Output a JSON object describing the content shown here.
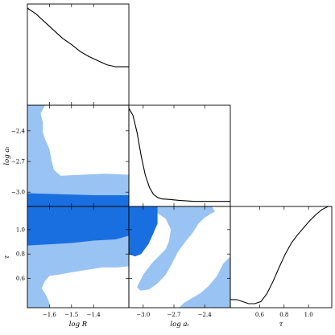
{
  "colors": {
    "inner": "#1a6fe0",
    "outer": "#99c3f2",
    "line": "#000000"
  },
  "chart_data": {
    "type": "corner",
    "grid": false,
    "parameters": [
      {
        "key": "logR",
        "label": "log R",
        "range": [
          -1.7,
          -1.24
        ],
        "ticks": [
          -1.6,
          -1.5,
          -1.4
        ],
        "tick_labels": [
          "−1.6",
          "−1.5",
          "−1.4"
        ]
      },
      {
        "key": "logat",
        "label": "log aₜ",
        "range": [
          -3.14,
          -2.15
        ],
        "ticks": [
          -3.0,
          -2.7,
          -2.4
        ],
        "tick_labels": [
          "−3.0",
          "−2.7",
          "−2.4"
        ]
      },
      {
        "key": "tau",
        "label": "τ",
        "range": [
          0.36,
          1.19
        ],
        "ticks": [
          0.6,
          0.8,
          1.0
        ],
        "tick_labels": [
          "0.6",
          "0.8",
          "1.0"
        ]
      }
    ],
    "marginals": [
      {
        "param": "logR",
        "x": [
          -1.7,
          -1.66,
          -1.62,
          -1.58,
          -1.54,
          -1.5,
          -1.46,
          -1.42,
          -1.38,
          -1.34,
          -1.3,
          -1.26,
          -1.24
        ],
        "y": [
          0.96,
          0.9,
          0.82,
          0.74,
          0.66,
          0.6,
          0.53,
          0.48,
          0.44,
          0.4,
          0.38,
          0.38,
          0.38
        ]
      },
      {
        "param": "logat",
        "x": [
          -3.14,
          -3.1,
          -3.06,
          -3.02,
          -2.98,
          -2.94,
          -2.9,
          -2.86,
          -2.82,
          -2.75,
          -2.65,
          -2.5,
          -2.35,
          -2.2,
          -2.15
        ],
        "y": [
          0.97,
          0.9,
          0.73,
          0.5,
          0.31,
          0.19,
          0.12,
          0.09,
          0.075,
          0.07,
          0.06,
          0.05,
          0.05,
          0.05,
          0.05
        ]
      },
      {
        "param": "tau",
        "x": [
          0.36,
          0.41,
          0.46,
          0.51,
          0.56,
          0.61,
          0.66,
          0.71,
          0.76,
          0.81,
          0.86,
          0.91,
          0.96,
          1.01,
          1.06,
          1.11,
          1.16,
          1.19
        ],
        "y": [
          0.08,
          0.08,
          0.06,
          0.04,
          0.04,
          0.06,
          0.14,
          0.26,
          0.4,
          0.53,
          0.64,
          0.72,
          0.79,
          0.86,
          0.92,
          0.97,
          1.0,
          1.0
        ]
      }
    ],
    "contours": [
      {
        "x": "logR",
        "y": "logat",
        "levels": [
          {
            "level": "outer",
            "polygon": [
              [
                -1.7,
                -3.14
              ],
              [
                -1.24,
                -3.14
              ],
              [
                -1.24,
                -2.83
              ],
              [
                -1.35,
                -2.82
              ],
              [
                -1.45,
                -2.83
              ],
              [
                -1.55,
                -2.84
              ],
              [
                -1.58,
                -2.78
              ],
              [
                -1.59,
                -2.69
              ],
              [
                -1.6,
                -2.58
              ],
              [
                -1.62,
                -2.48
              ],
              [
                -1.63,
                -2.41
              ],
              [
                -1.63,
                -2.32
              ],
              [
                -1.64,
                -2.23
              ],
              [
                -1.62,
                -2.15
              ],
              [
                -1.7,
                -2.15
              ]
            ]
          },
          {
            "level": "inner",
            "polygon": [
              [
                -1.7,
                -3.14
              ],
              [
                -1.24,
                -3.14
              ],
              [
                -1.24,
                -3.03
              ],
              [
                -1.4,
                -3.03
              ],
              [
                -1.55,
                -3.02
              ],
              [
                -1.7,
                -3.01
              ]
            ]
          }
        ]
      },
      {
        "x": "logR",
        "y": "tau",
        "levels": [
          {
            "level": "outer",
            "polygon": [
              [
                -1.7,
                1.19
              ],
              [
                -1.24,
                1.19
              ],
              [
                -1.24,
                0.7
              ],
              [
                -1.29,
                0.69
              ],
              [
                -1.36,
                0.69
              ],
              [
                -1.43,
                0.67
              ],
              [
                -1.5,
                0.65
              ],
              [
                -1.56,
                0.63
              ],
              [
                -1.6,
                0.62
              ],
              [
                -1.62,
                0.58
              ],
              [
                -1.635,
                0.52
              ],
              [
                -1.615,
                0.46
              ],
              [
                -1.6,
                0.4
              ],
              [
                -1.6,
                0.36
              ],
              [
                -1.7,
                0.36
              ]
            ]
          },
          {
            "level": "inner",
            "polygon": [
              [
                -1.7,
                1.19
              ],
              [
                -1.24,
                1.19
              ],
              [
                -1.24,
                0.95
              ],
              [
                -1.3,
                0.92
              ],
              [
                -1.4,
                0.91
              ],
              [
                -1.5,
                0.89
              ],
              [
                -1.6,
                0.88
              ],
              [
                -1.7,
                0.87
              ]
            ]
          }
        ]
      },
      {
        "x": "logat",
        "y": "tau",
        "levels": [
          {
            "level": "outer",
            "polygon": [
              [
                -3.14,
                1.19
              ],
              [
                -2.33,
                1.19
              ],
              [
                -2.3,
                1.15
              ],
              [
                -2.4,
                1.1
              ],
              [
                -2.46,
                1.05
              ],
              [
                -2.52,
                0.97
              ],
              [
                -2.58,
                0.91
              ],
              [
                -2.66,
                0.82
              ],
              [
                -2.72,
                0.72
              ],
              [
                -2.78,
                0.63
              ],
              [
                -2.86,
                0.56
              ],
              [
                -2.94,
                0.51
              ],
              [
                -3.03,
                0.5
              ],
              [
                -3.06,
                0.53
              ],
              [
                -3.0,
                0.63
              ],
              [
                -2.92,
                0.72
              ],
              [
                -2.84,
                0.79
              ],
              [
                -2.78,
                0.84
              ],
              [
                -2.75,
                0.9
              ],
              [
                -2.73,
                1.0
              ],
              [
                -2.78,
                1.09
              ],
              [
                -2.87,
                1.14
              ],
              [
                -2.95,
                1.18
              ],
              [
                -3.0,
                1.1
              ],
              [
                -3.02,
                1.02
              ],
              [
                -3.07,
                0.95
              ],
              [
                -3.14,
                0.91
              ]
            ]
          },
          {
            "level": "outer",
            "polygon": [
              [
                -2.65,
                0.36
              ],
              [
                -2.15,
                0.36
              ],
              [
                -2.15,
                0.78
              ],
              [
                -2.22,
                0.72
              ],
              [
                -2.28,
                0.62
              ],
              [
                -2.36,
                0.54
              ],
              [
                -2.44,
                0.48
              ],
              [
                -2.52,
                0.44
              ],
              [
                -2.6,
                0.4
              ]
            ]
          },
          {
            "level": "inner",
            "polygon": [
              [
                -3.14,
                1.19
              ],
              [
                -2.86,
                1.19
              ],
              [
                -2.86,
                1.05
              ],
              [
                -2.9,
                0.97
              ],
              [
                -2.95,
                0.88
              ],
              [
                -3.02,
                0.8
              ],
              [
                -3.08,
                0.78
              ],
              [
                -3.14,
                0.8
              ]
            ]
          }
        ]
      }
    ]
  }
}
